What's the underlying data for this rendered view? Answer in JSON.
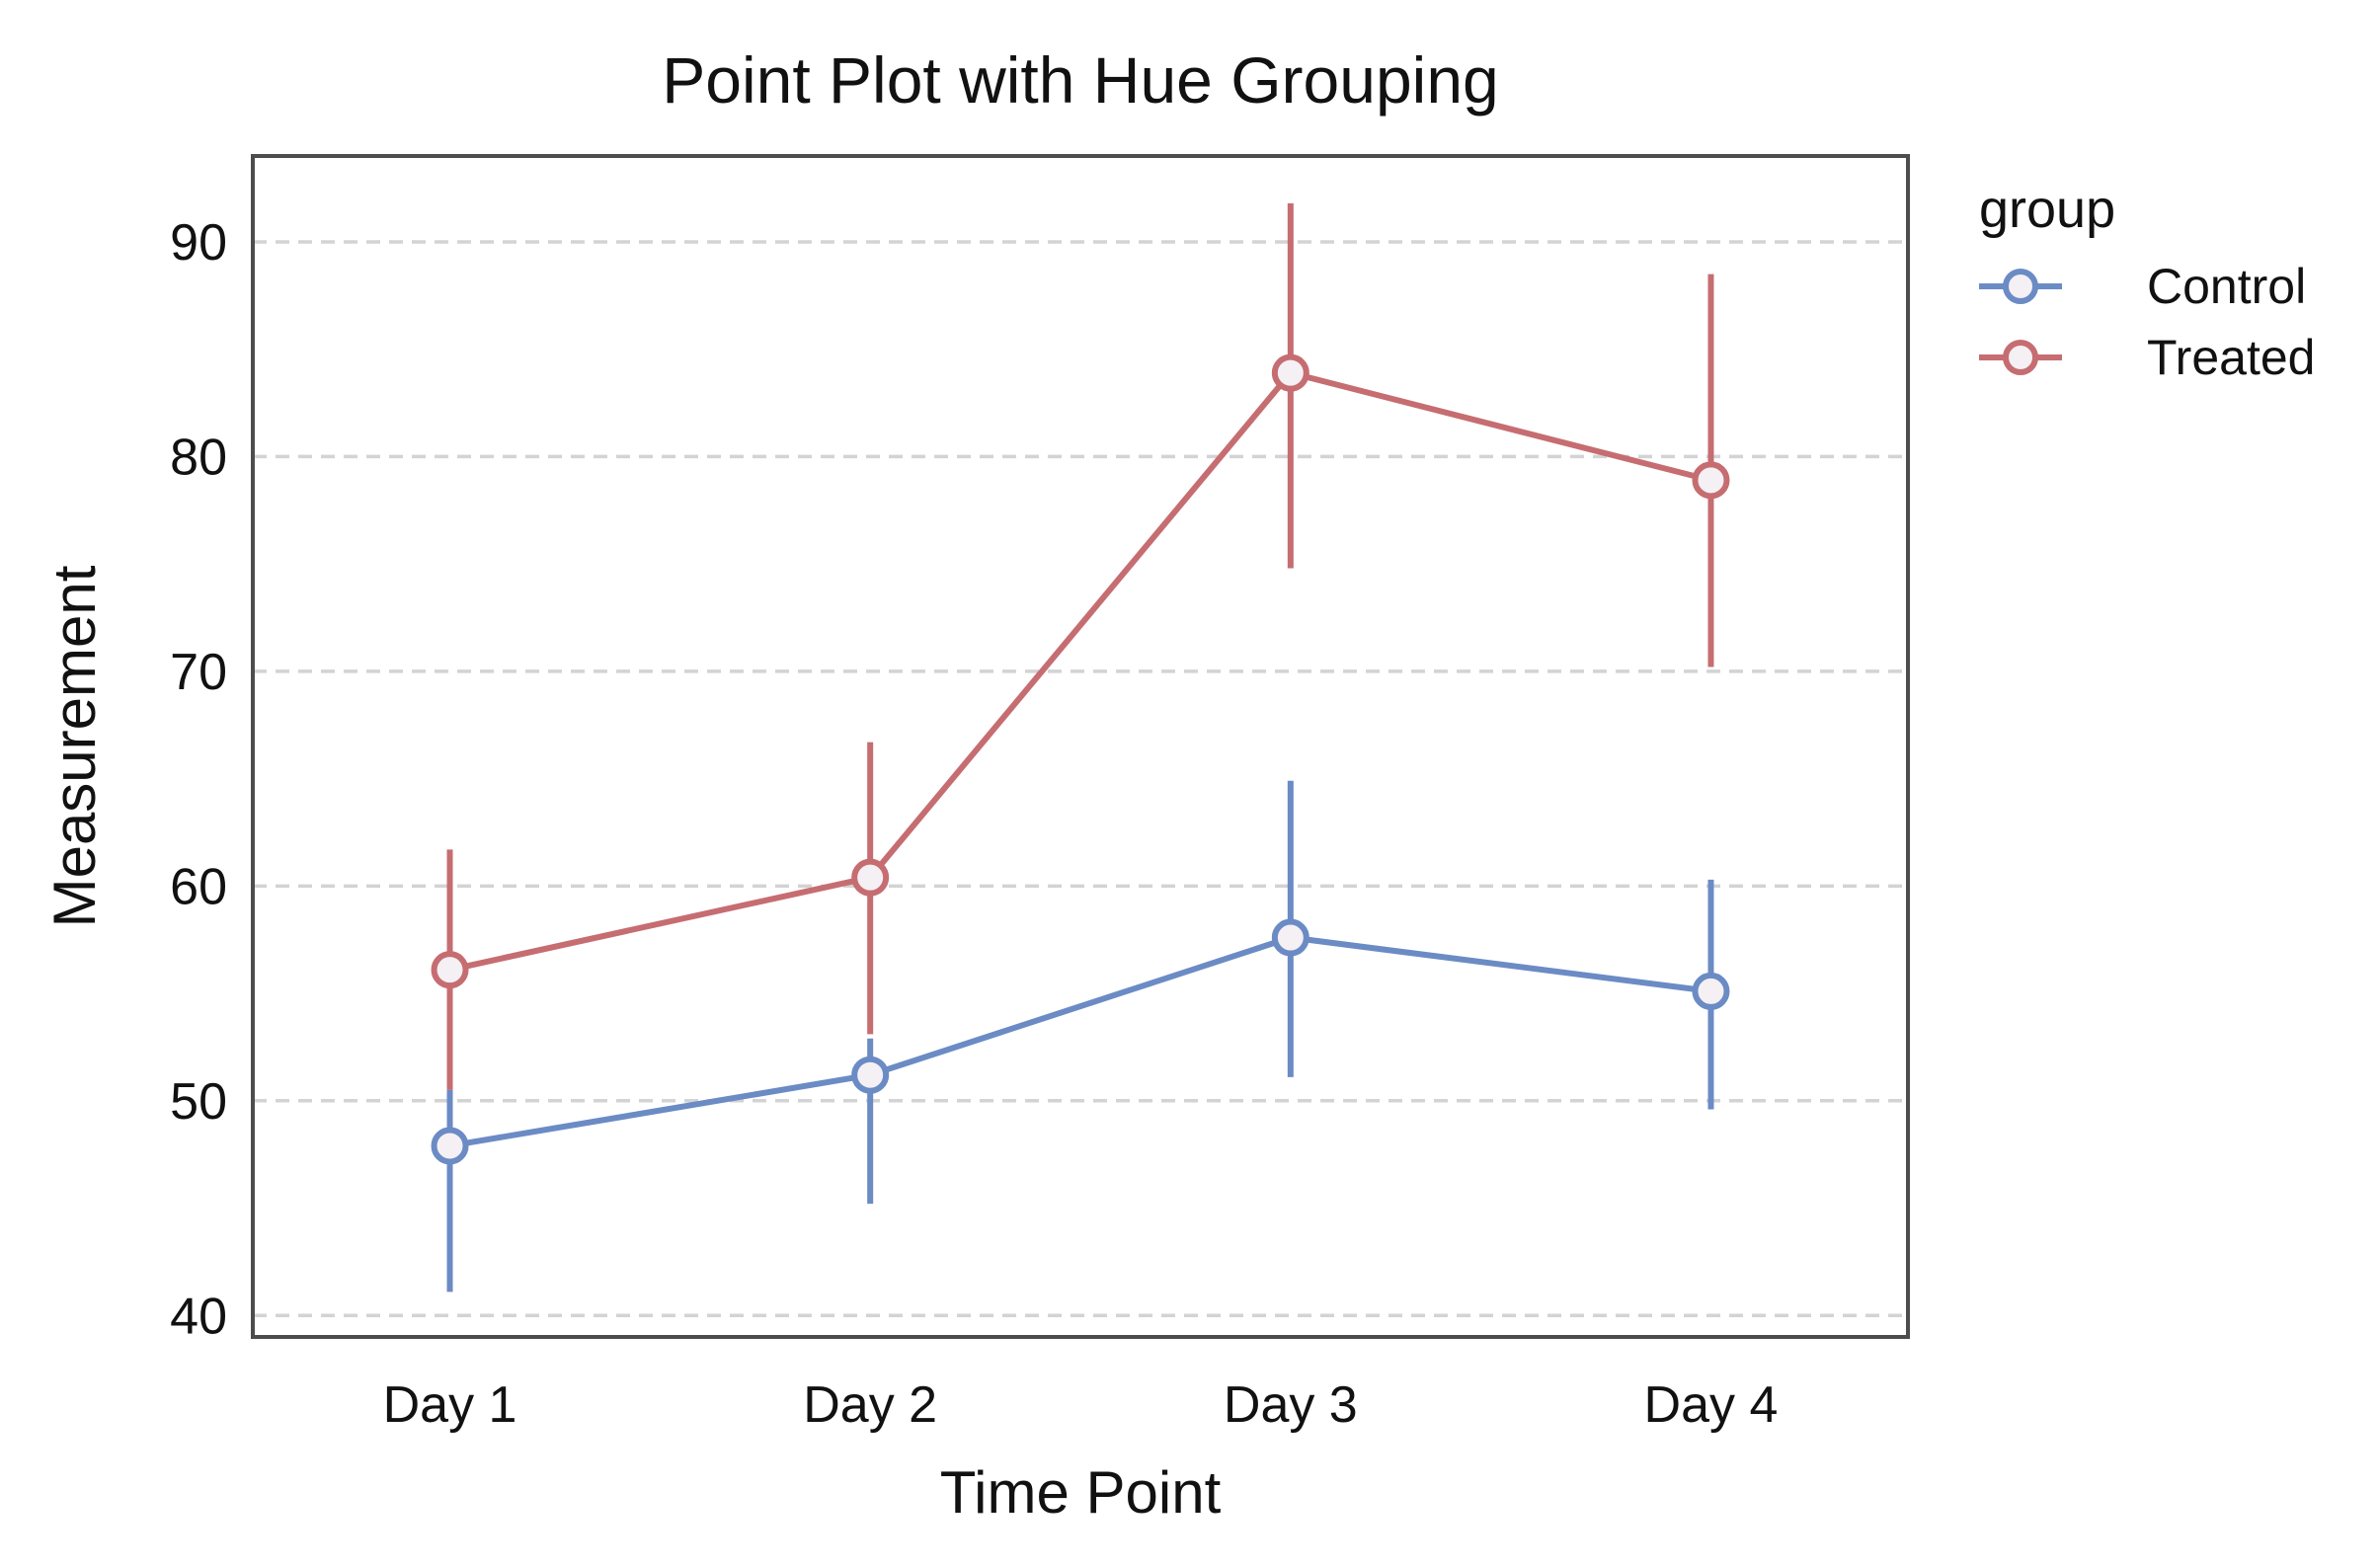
{
  "chart_data": {
    "type": "line",
    "title": "Point Plot with Hue Grouping",
    "xlabel": "Time Point",
    "ylabel": "Measurement",
    "categories": [
      "Day 1",
      "Day 2",
      "Day 3",
      "Day 4"
    ],
    "ylim": [
      39,
      94
    ],
    "yticks": [
      40,
      50,
      60,
      70,
      80,
      90
    ],
    "grid": "horizontal dashed",
    "legend": {
      "title": "group",
      "placement": "outside right, top"
    },
    "series": [
      {
        "name": "Control",
        "color": "#6b8bc5",
        "values": [
          47.9,
          51.2,
          57.6,
          55.1
        ],
        "ci_low": [
          41.1,
          45.2,
          51.1,
          49.6
        ],
        "ci_high": [
          50.5,
          52.9,
          64.9,
          60.3
        ]
      },
      {
        "name": "Treated",
        "color": "#c66d72",
        "values": [
          56.1,
          60.4,
          83.9,
          78.9
        ],
        "ci_low": [
          50.5,
          53.1,
          74.8,
          70.2
        ],
        "ci_high": [
          61.7,
          66.7,
          91.8,
          88.5
        ]
      }
    ]
  }
}
